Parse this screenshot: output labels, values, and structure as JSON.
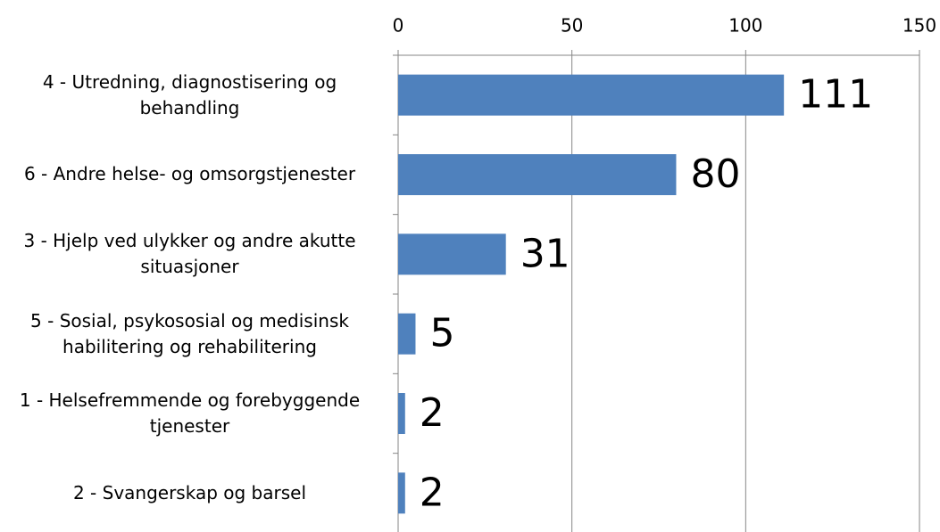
{
  "chart_data": {
    "type": "bar",
    "orientation": "horizontal",
    "categories": [
      "4 - Utredning, diagnostisering og behandling",
      "6 - Andre helse- og omsorgstjenester",
      "3 - Hjelp ved ulykker og andre akutte situasjoner",
      "5 - Sosial, psykososial og medisinsk habilitering og rehabilitering",
      "1 - Helsefremmende og forebyggende tjenester",
      "2 - Svangerskap og barsel"
    ],
    "values": [
      111,
      80,
      31,
      5,
      2,
      2
    ],
    "color": "#4f81bd",
    "xlim": [
      0,
      150
    ],
    "xticks": [
      0,
      50,
      100,
      150
    ],
    "grid": true
  }
}
